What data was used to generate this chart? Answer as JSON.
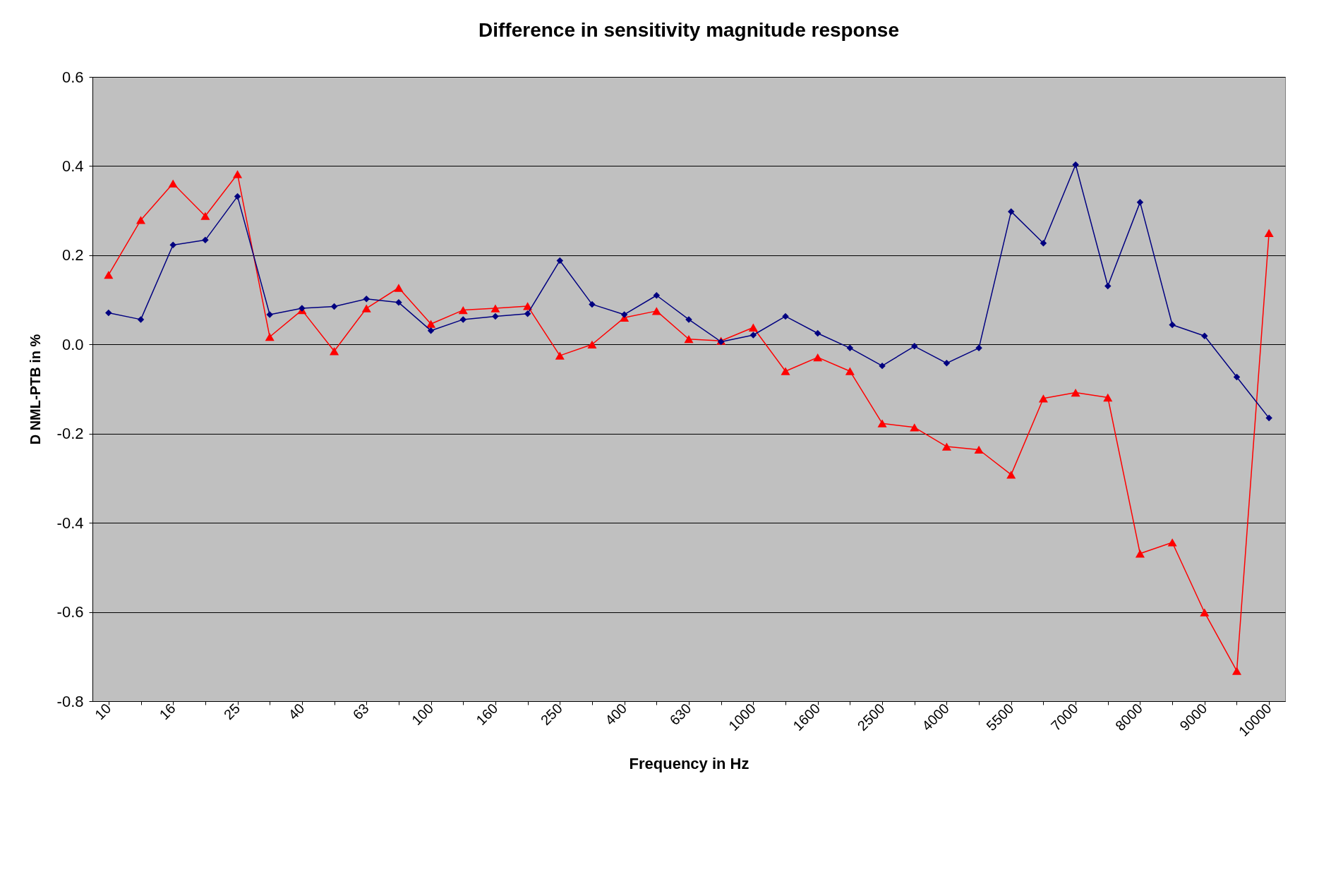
{
  "chart_data": {
    "type": "line",
    "title": "Difference in sensitivity magnitude response",
    "xlabel": "Frequency in Hz",
    "ylabel": "D NML-PTB in %",
    "categories": [
      "10",
      null,
      "16",
      null,
      "25",
      null,
      "40",
      null,
      "63",
      null,
      "100",
      null,
      "160",
      null,
      "250",
      null,
      "400",
      null,
      "630",
      null,
      "1000",
      null,
      "1600",
      null,
      "2500",
      null,
      "4000",
      null,
      "5500",
      null,
      "7000",
      null,
      "8000",
      null,
      "9000",
      null,
      "10000"
    ],
    "series": [
      {
        "color": "#ff0000",
        "marker": "triangle",
        "values": [
          0.156,
          0.279,
          0.361,
          0.288,
          0.382,
          0.017,
          0.077,
          -0.015,
          0.081,
          0.127,
          0.046,
          0.077,
          0.081,
          0.086,
          -0.025,
          0.0,
          0.06,
          0.075,
          0.012,
          0.008,
          0.038,
          -0.06,
          -0.029,
          -0.06,
          -0.177,
          -0.186,
          -0.229,
          -0.236,
          -0.292,
          -0.121,
          -0.108,
          -0.119,
          -0.469,
          -0.444,
          -0.601,
          -0.732,
          0.25
        ]
      },
      {
        "color": "#000080",
        "marker": "diamond",
        "values": [
          0.071,
          0.056,
          0.223,
          0.234,
          0.332,
          0.067,
          0.081,
          0.085,
          0.102,
          0.094,
          0.031,
          0.056,
          0.063,
          0.069,
          0.188,
          0.09,
          0.067,
          0.11,
          0.056,
          0.006,
          0.021,
          0.063,
          0.025,
          -0.008,
          -0.048,
          -0.004,
          -0.042,
          -0.008,
          0.298,
          0.227,
          0.403,
          0.131,
          0.319,
          0.044,
          0.019,
          -0.073,
          -0.165
        ]
      }
    ],
    "ylim": [
      -0.8,
      0.6
    ],
    "yticks": [
      {
        "value": -0.8,
        "label": "-0.8"
      },
      {
        "value": -0.6,
        "label": "-0.6"
      },
      {
        "value": -0.4,
        "label": "-0.4"
      },
      {
        "value": -0.2,
        "label": "-0.2"
      },
      {
        "value": 0,
        "label": "0.0"
      },
      {
        "value": 0.2,
        "label": "0.2"
      },
      {
        "value": 0.4,
        "label": "0.4"
      },
      {
        "value": 0.6,
        "label": "0.6"
      }
    ],
    "grid": "y",
    "line_style": "solid"
  }
}
